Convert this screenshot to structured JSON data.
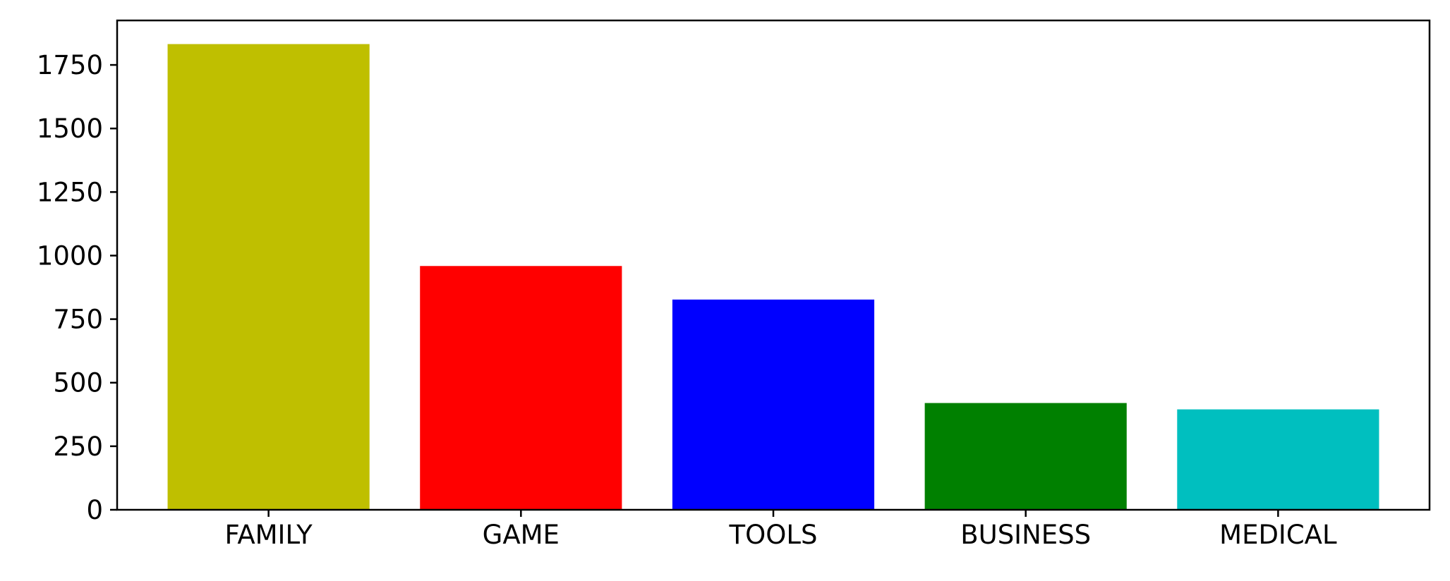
{
  "chart_data": {
    "type": "bar",
    "categories": [
      "FAMILY",
      "GAME",
      "TOOLS",
      "BUSINESS",
      "MEDICAL"
    ],
    "values": [
      1832,
      959,
      827,
      420,
      395
    ],
    "colors": [
      "#bfbf00",
      "#ff0000",
      "#0000ff",
      "#008000",
      "#00bfbf"
    ],
    "ylim": [
      0,
      1925
    ],
    "yticks": [
      0,
      250,
      500,
      750,
      1000,
      1250,
      1500,
      1750
    ],
    "title": "",
    "xlabel": "",
    "ylabel": "",
    "grid": false,
    "legend": "none"
  }
}
